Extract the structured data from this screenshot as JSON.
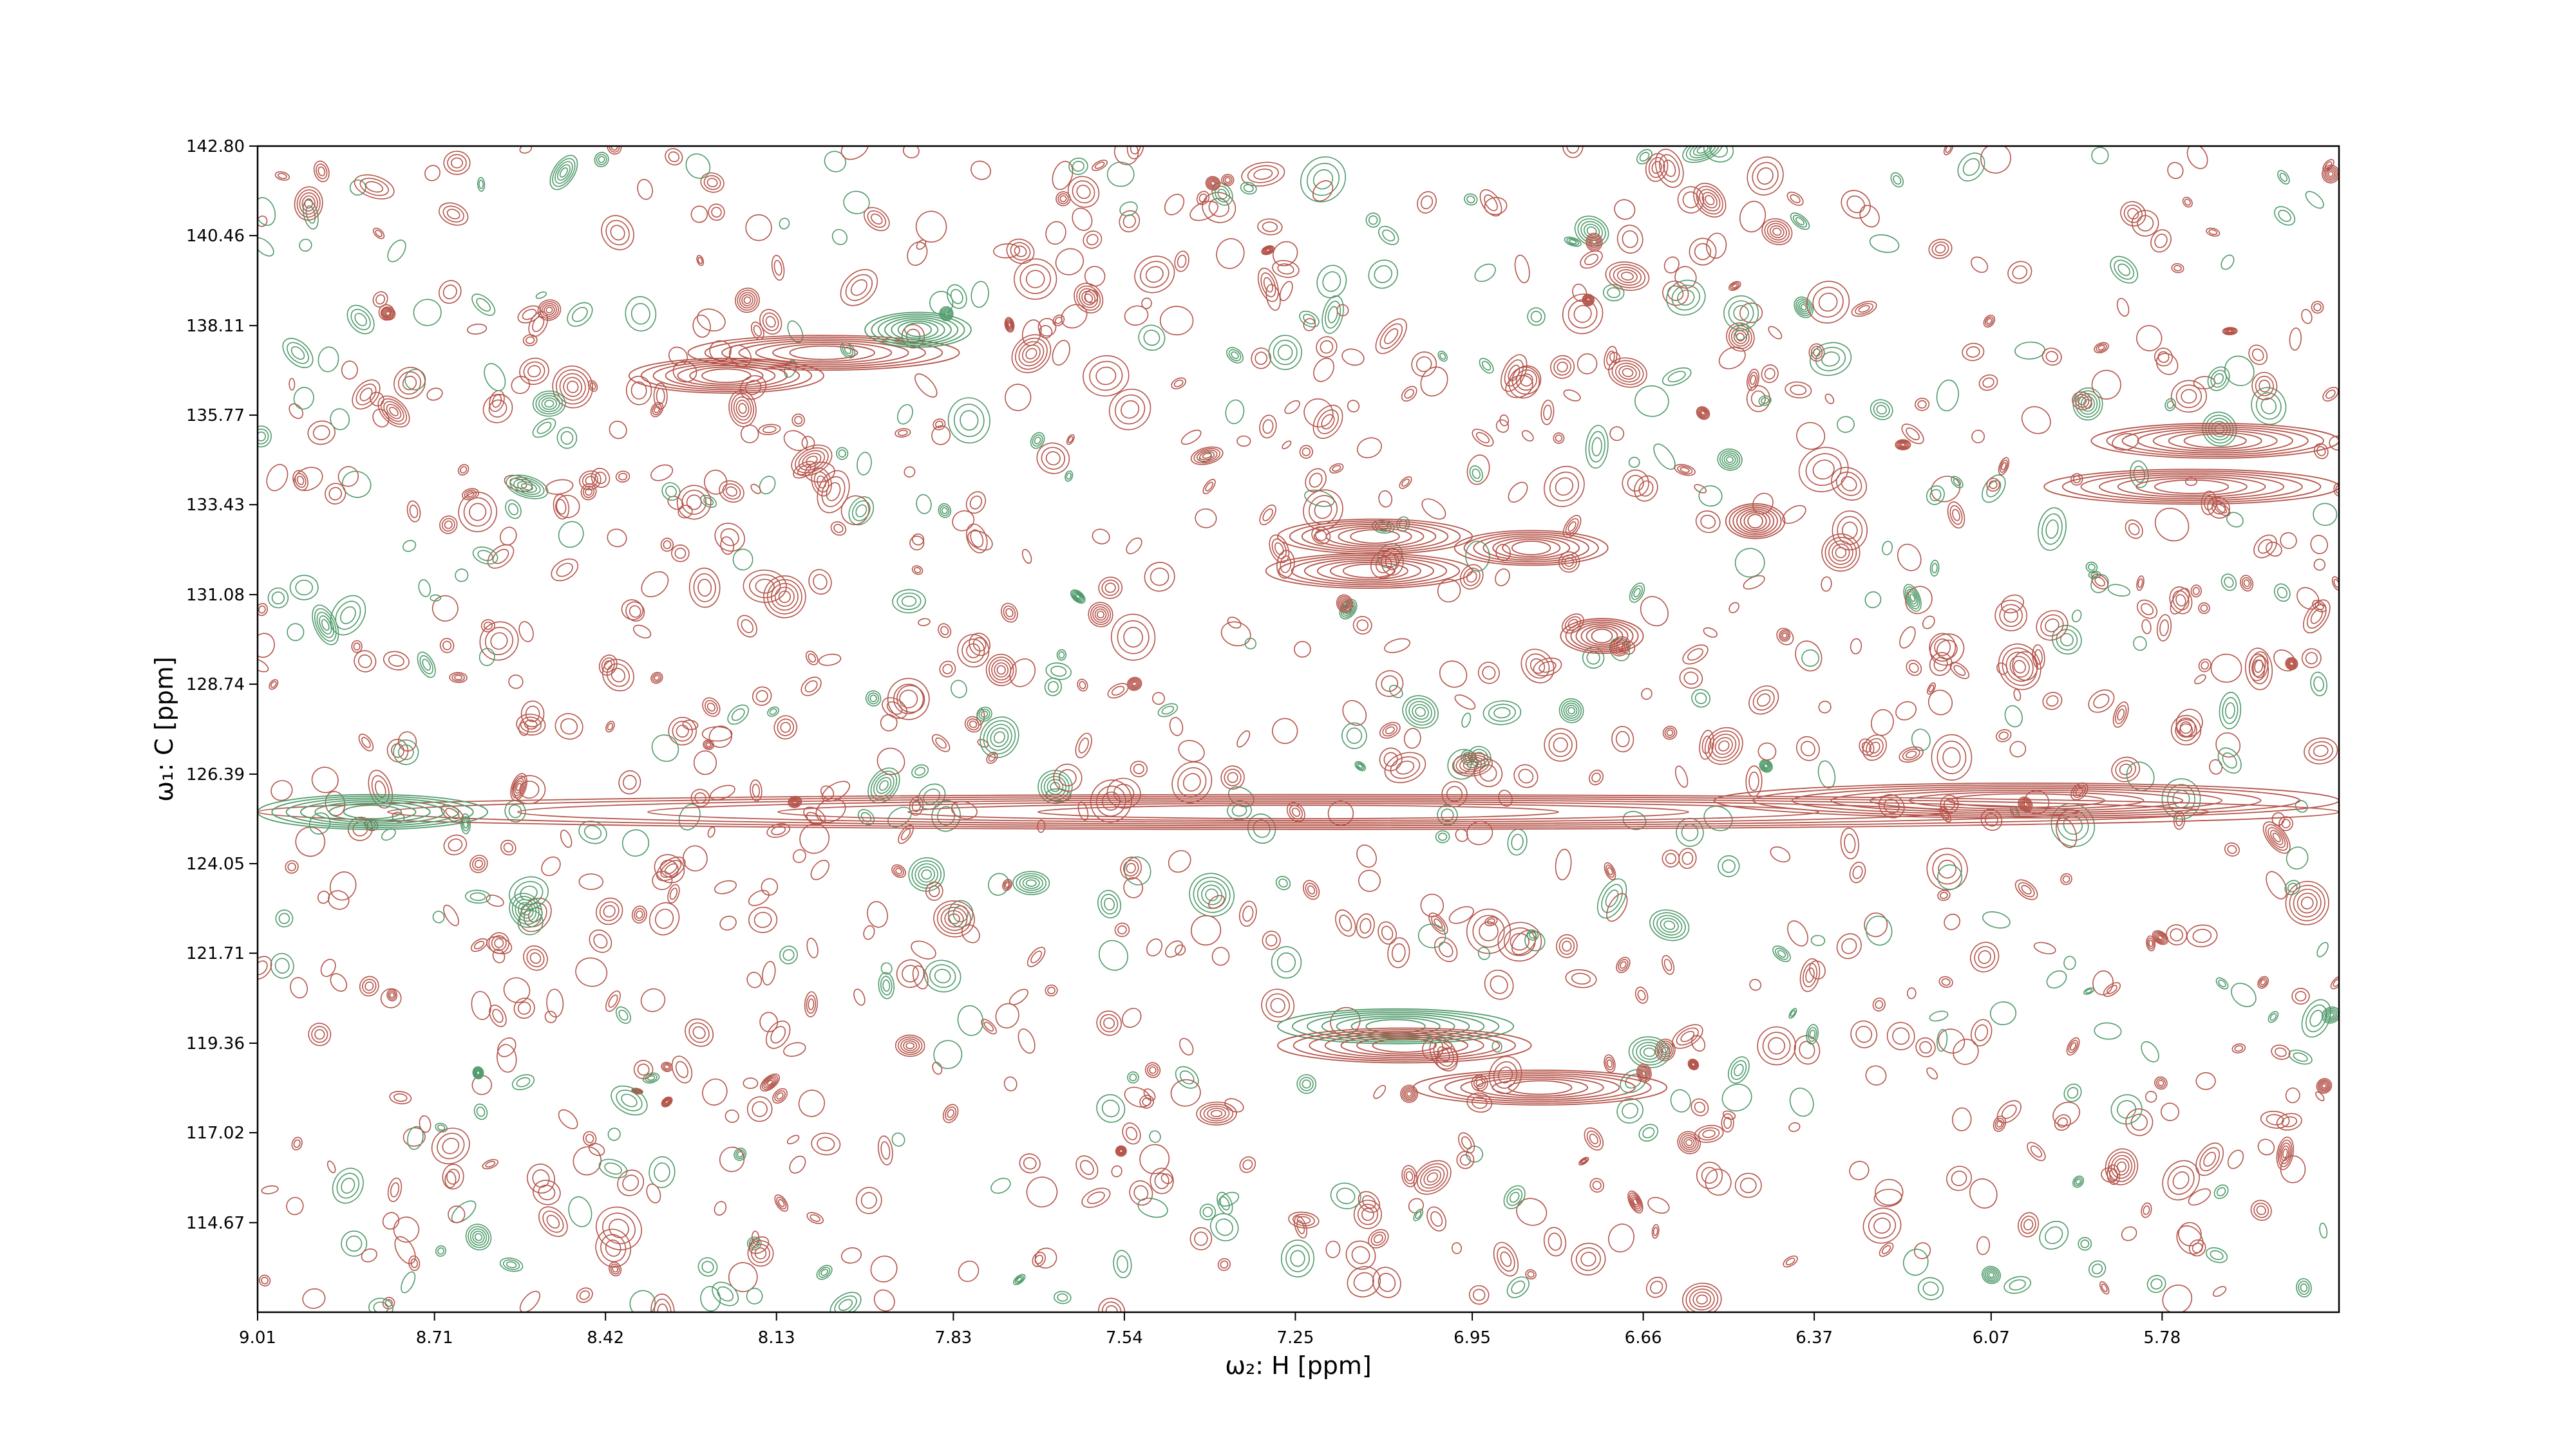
{
  "chart_data": {
    "type": "contour",
    "xlabel": "ω₂: H [ppm]",
    "ylabel": "ω₁: C [ppm]",
    "xlim": [
      9.01,
      5.48
    ],
    "ylim": [
      142.8,
      112.33
    ],
    "x_axis_reversed": true,
    "y_axis_reversed": true,
    "grid": false,
    "x_ticks": [
      "9.01",
      "8.71",
      "8.42",
      "8.13",
      "7.83",
      "7.54",
      "7.25",
      "6.95",
      "6.66",
      "6.37",
      "6.07",
      "5.78"
    ],
    "y_ticks": [
      "114.67",
      "117.02",
      "119.36",
      "121.71",
      "124.05",
      "126.39",
      "128.74",
      "131.08",
      "133.43",
      "135.77",
      "138.11",
      "140.46",
      "142.80"
    ],
    "colors": {
      "positive": "#b5544a",
      "negative": "#4f9a6a"
    },
    "ridges": [
      {
        "sign": "positive",
        "x1": 9.01,
        "x2": 5.48,
        "y": 125.4
      },
      {
        "sign": "negative",
        "x1": 9.01,
        "x2": 8.62,
        "y": 125.4
      },
      {
        "sign": "positive",
        "x1": 6.54,
        "x2": 5.48,
        "y": 125.7
      },
      {
        "sign": "positive",
        "x1": 8.28,
        "x2": 7.82,
        "y": 137.4
      },
      {
        "sign": "negative",
        "x1": 7.98,
        "x2": 7.8,
        "y": 138.0
      },
      {
        "sign": "positive",
        "x1": 8.38,
        "x2": 8.05,
        "y": 136.8
      },
      {
        "sign": "negative",
        "x1": 7.28,
        "x2": 6.88,
        "y": 119.8
      },
      {
        "sign": "positive",
        "x1": 7.28,
        "x2": 6.85,
        "y": 119.3
      },
      {
        "sign": "positive",
        "x1": 7.05,
        "x2": 6.62,
        "y": 118.2
      },
      {
        "sign": "positive",
        "x1": 7.3,
        "x2": 6.95,
        "y": 131.7
      },
      {
        "sign": "positive",
        "x1": 7.28,
        "x2": 6.95,
        "y": 132.6
      },
      {
        "sign": "positive",
        "x1": 6.98,
        "x2": 6.72,
        "y": 132.3
      },
      {
        "sign": "positive",
        "x1": 6.8,
        "x2": 6.66,
        "y": 130.0
      },
      {
        "sign": "positive",
        "x1": 6.52,
        "x2": 6.42,
        "y": 133.0
      },
      {
        "sign": "positive",
        "x1": 5.98,
        "x2": 5.48,
        "y": 133.9
      },
      {
        "sign": "positive",
        "x1": 5.9,
        "x2": 5.48,
        "y": 135.1
      }
    ]
  }
}
